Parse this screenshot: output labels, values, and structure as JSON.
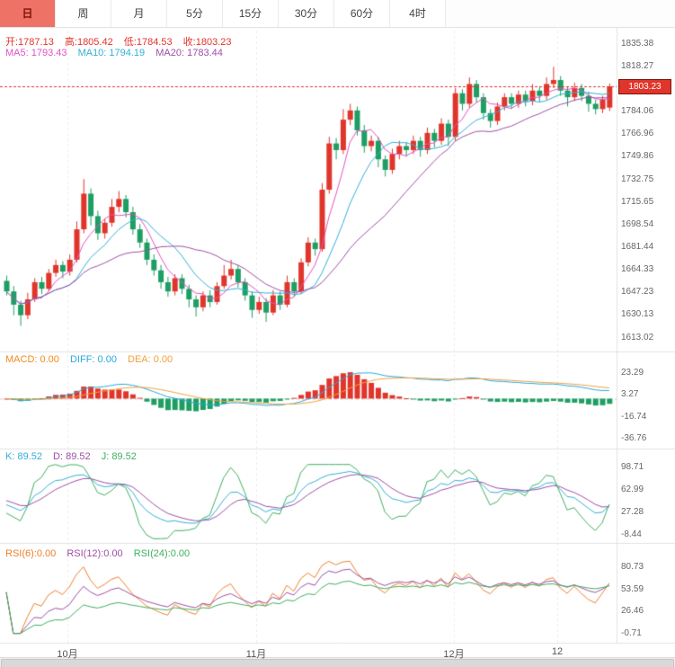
{
  "toolbar": {
    "tabs": [
      "日",
      "周",
      "月",
      "5分",
      "15分",
      "30分",
      "60分",
      "4时"
    ],
    "active_index": 0
  },
  "main_panel": {
    "ohlc": {
      "open_label": "开:1787.13",
      "high_label": "高:1805.42",
      "low_label": "低:1784.53",
      "close_label": "收:1803.23"
    },
    "ma": {
      "ma5_label": "MA5: 1793.43",
      "ma10_label": "MA10: 1794.19",
      "ma20_label": "MA20: 1783.44"
    },
    "price_tag": "1803.23"
  },
  "macd_panel": {
    "macd_label": "MACD: 0.00",
    "diff_label": "DIFF: 0.00",
    "dea_label": "DEA: 0.00"
  },
  "kdj_panel": {
    "k_label": "K: 89.52",
    "d_label": "D: 89.52",
    "j_label": "J: 89.52"
  },
  "rsi_panel": {
    "rsi6_label": "RSI(6):0.00",
    "rsi12_label": "RSI(12):0.00",
    "rsi24_label": "RSI(24):0.00"
  },
  "colors": {
    "up": "#e0352b",
    "down": "#1d9e63",
    "ma5": "#e352c2",
    "ma10": "#31b0d5",
    "ma20": "#9e4fa5",
    "diff_line": "#2ba8e0",
    "dea_line": "#f0a03c",
    "k_line": "#31b0d5",
    "d_line": "#9e4fa5",
    "j_line": "#3faf5f",
    "rsi6": "#ee7f2d",
    "rsi12": "#9e4fa5",
    "rsi24": "#3faf5f",
    "price_line": "#e0352b",
    "grid": "#ececec",
    "separator": "#e2e2e2",
    "axis_text": "#666666",
    "tag_bg": "#e0352b"
  },
  "chart_data": {
    "type": "candlestick",
    "title": "Daily gold price candlestick chart with MA5/MA10/MA20 and MACD, KDJ, RSI sub-indicators",
    "timeframe_selected": "日",
    "ylim": [
      1613.02,
      1835.38
    ],
    "price_line": 1803.23,
    "ohlc_current": {
      "open": 1787.13,
      "high": 1805.42,
      "low": 1784.53,
      "close": 1803.23
    },
    "ma_values": {
      "ma5": 1793.43,
      "ma10": 1794.19,
      "ma20": 1783.44
    },
    "y_axis_ticks": [
      1835.38,
      1818.27,
      1784.06,
      1766.96,
      1749.86,
      1732.75,
      1715.65,
      1698.54,
      1681.44,
      1664.33,
      1647.23,
      1630.13,
      1613.02
    ],
    "x_axis_labels": [
      {
        "text": "10月",
        "x": 75
      },
      {
        "text": "11月",
        "x": 285
      },
      {
        "text": "12月",
        "x": 505
      },
      {
        "text": "12",
        "x": 620
      }
    ],
    "candles": [
      [
        1656,
        1660,
        1645,
        1648
      ],
      [
        1648,
        1652,
        1630,
        1638
      ],
      [
        1638,
        1641,
        1622,
        1630
      ],
      [
        1630,
        1647,
        1627,
        1642
      ],
      [
        1642,
        1658,
        1640,
        1655
      ],
      [
        1655,
        1659,
        1646,
        1650
      ],
      [
        1650,
        1665,
        1648,
        1662
      ],
      [
        1662,
        1672,
        1659,
        1668
      ],
      [
        1668,
        1671,
        1658,
        1663
      ],
      [
        1663,
        1676,
        1660,
        1672
      ],
      [
        1672,
        1701,
        1670,
        1695
      ],
      [
        1695,
        1733,
        1692,
        1722
      ],
      [
        1722,
        1726,
        1698,
        1705
      ],
      [
        1705,
        1709,
        1687,
        1692
      ],
      [
        1692,
        1703,
        1688,
        1700
      ],
      [
        1700,
        1718,
        1697,
        1712
      ],
      [
        1712,
        1724,
        1708,
        1718
      ],
      [
        1718,
        1721,
        1704,
        1708
      ],
      [
        1708,
        1712,
        1691,
        1695
      ],
      [
        1695,
        1699,
        1681,
        1685
      ],
      [
        1685,
        1688,
        1668,
        1672
      ],
      [
        1672,
        1676,
        1660,
        1664
      ],
      [
        1664,
        1668,
        1650,
        1655
      ],
      [
        1655,
        1659,
        1644,
        1648
      ],
      [
        1648,
        1661,
        1645,
        1658
      ],
      [
        1658,
        1661,
        1646,
        1650
      ],
      [
        1650,
        1653,
        1636,
        1642
      ],
      [
        1642,
        1645,
        1629,
        1636
      ],
      [
        1636,
        1648,
        1633,
        1645
      ],
      [
        1645,
        1649,
        1636,
        1640
      ],
      [
        1640,
        1655,
        1638,
        1652
      ],
      [
        1652,
        1668,
        1650,
        1660
      ],
      [
        1660,
        1672,
        1657,
        1665
      ],
      [
        1665,
        1668,
        1651,
        1655
      ],
      [
        1655,
        1658,
        1641,
        1645
      ],
      [
        1645,
        1648,
        1628,
        1634
      ],
      [
        1634,
        1644,
        1631,
        1640
      ],
      [
        1640,
        1643,
        1625,
        1632
      ],
      [
        1632,
        1649,
        1630,
        1645
      ],
      [
        1645,
        1648,
        1634,
        1638
      ],
      [
        1638,
        1660,
        1636,
        1655
      ],
      [
        1655,
        1658,
        1644,
        1648
      ],
      [
        1648,
        1673,
        1646,
        1670
      ],
      [
        1670,
        1689,
        1667,
        1685
      ],
      [
        1685,
        1688,
        1675,
        1680
      ],
      [
        1680,
        1730,
        1678,
        1725
      ],
      [
        1725,
        1765,
        1722,
        1760
      ],
      [
        1760,
        1764,
        1748,
        1755
      ],
      [
        1755,
        1786,
        1752,
        1778
      ],
      [
        1778,
        1790,
        1774,
        1785
      ],
      [
        1785,
        1788,
        1766,
        1770
      ],
      [
        1770,
        1774,
        1753,
        1758
      ],
      [
        1758,
        1766,
        1754,
        1762
      ],
      [
        1762,
        1765,
        1742,
        1748
      ],
      [
        1748,
        1751,
        1735,
        1740
      ],
      [
        1740,
        1756,
        1737,
        1752
      ],
      [
        1752,
        1762,
        1748,
        1758
      ],
      [
        1758,
        1761,
        1750,
        1755
      ],
      [
        1755,
        1766,
        1752,
        1762
      ],
      [
        1762,
        1765,
        1750,
        1755
      ],
      [
        1755,
        1772,
        1752,
        1768
      ],
      [
        1768,
        1771,
        1757,
        1762
      ],
      [
        1762,
        1779,
        1759,
        1775
      ],
      [
        1775,
        1778,
        1758,
        1765
      ],
      [
        1765,
        1802,
        1762,
        1798
      ],
      [
        1798,
        1801,
        1785,
        1790
      ],
      [
        1790,
        1810,
        1787,
        1805
      ],
      [
        1805,
        1808,
        1791,
        1795
      ],
      [
        1795,
        1798,
        1778,
        1783
      ],
      [
        1783,
        1786,
        1772,
        1777
      ],
      [
        1777,
        1791,
        1774,
        1788
      ],
      [
        1788,
        1798,
        1785,
        1795
      ],
      [
        1795,
        1798,
        1786,
        1790
      ],
      [
        1790,
        1800,
        1787,
        1797
      ],
      [
        1797,
        1800,
        1788,
        1792
      ],
      [
        1792,
        1805,
        1789,
        1800
      ],
      [
        1800,
        1803,
        1791,
        1796
      ],
      [
        1796,
        1810,
        1793,
        1805
      ],
      [
        1805,
        1818,
        1802,
        1808
      ],
      [
        1808,
        1811,
        1796,
        1800
      ],
      [
        1800,
        1803,
        1788,
        1795
      ],
      [
        1795,
        1806,
        1792,
        1802
      ],
      [
        1802,
        1805,
        1792,
        1796
      ],
      [
        1796,
        1799,
        1784,
        1790
      ],
      [
        1790,
        1793,
        1782,
        1786
      ],
      [
        1786,
        1796,
        1783,
        1793
      ],
      [
        1787.13,
        1805.42,
        1784.53,
        1803.23
      ]
    ],
    "indicators": {
      "macd": {
        "macd": 0.0,
        "diff": 0.0,
        "dea": 0.0,
        "ticks": [
          23.29,
          3.27,
          -16.74,
          -36.76
        ]
      },
      "kdj": {
        "k": 89.52,
        "d": 89.52,
        "j": 89.52,
        "ticks": [
          98.71,
          62.99,
          27.28,
          -8.44
        ]
      },
      "rsi": {
        "rsi6": 0.0,
        "rsi12": 0.0,
        "rsi24": 0.0,
        "ticks": [
          80.73,
          53.59,
          26.46,
          -0.71
        ]
      }
    }
  }
}
